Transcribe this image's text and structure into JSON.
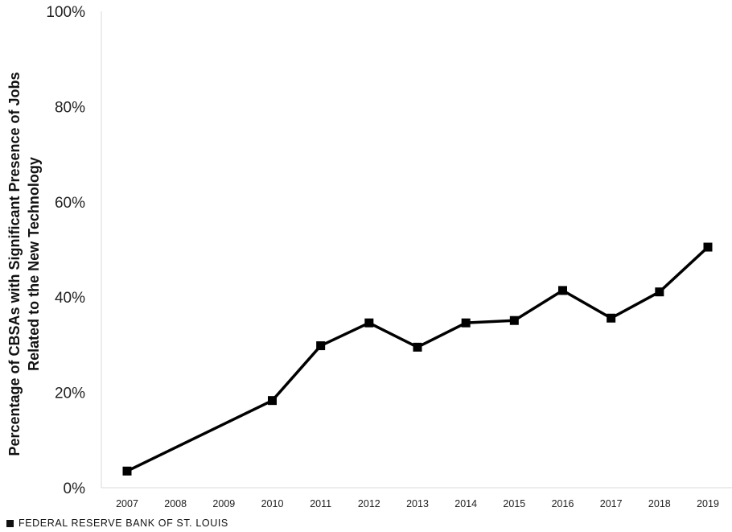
{
  "chart_data": {
    "type": "line",
    "ylabel": "Percentage of CBSAs with Significant Presence of Jobs Related to the New Technology",
    "ylabel_lines": [
      "Percentage of CBSAs with Significant Presence of Jobs",
      "Related to the New Technology"
    ],
    "categories": [
      "2007",
      "2008",
      "2009",
      "2010",
      "2011",
      "2012",
      "2013",
      "2014",
      "2015",
      "2016",
      "2017",
      "2018",
      "2019"
    ],
    "ylim": [
      0,
      100
    ],
    "yticks": [
      0,
      20,
      40,
      60,
      80,
      100
    ],
    "ytick_labels": [
      "0%",
      "20%",
      "40%",
      "60%",
      "80%",
      "100%"
    ],
    "grid": false,
    "series": [
      {
        "x": [
          "2007",
          "2010",
          "2011",
          "2012",
          "2013",
          "2014",
          "2015",
          "2016",
          "2017",
          "2018",
          "2019"
        ],
        "values": [
          3.5,
          18.3,
          29.8,
          34.6,
          29.5,
          34.6,
          35.1,
          41.4,
          35.6,
          41.1,
          50.5
        ],
        "color": "#000000",
        "marker": "square"
      }
    ]
  },
  "footer": {
    "source": "FEDERAL RESERVE BANK OF ST. LOUIS"
  }
}
